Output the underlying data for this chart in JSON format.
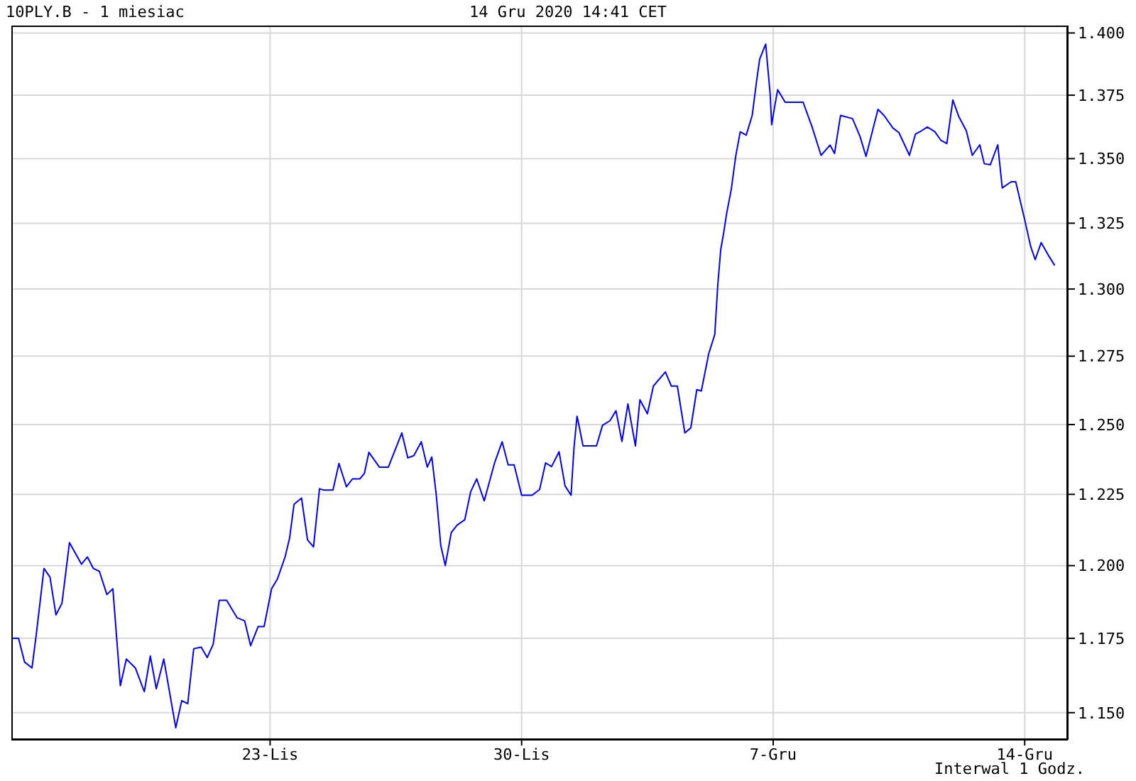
{
  "chart_data": {
    "type": "line",
    "title": "10PLY.B - 1 miesiac",
    "subtitle": "14 Gru 2020 14:41 CET",
    "annotations": [
      "Interwal 1 Godz."
    ],
    "x": [
      "2020-11-15T20:00",
      "2020-11-16T00:00",
      "2020-11-16T04:00",
      "2020-11-16T09:00",
      "2020-11-16T12:00",
      "2020-11-16T17:00",
      "2020-11-16T21:00",
      "2020-11-17T01:00",
      "2020-11-17T05:00",
      "2020-11-17T10:00",
      "2020-11-17T18:00",
      "2020-11-17T22:00",
      "2020-11-18T02:00",
      "2020-11-18T06:00",
      "2020-11-18T11:00",
      "2020-11-18T15:00",
      "2020-11-18T20:00",
      "2020-11-19T00:00",
      "2020-11-19T06:00",
      "2020-11-19T12:00",
      "2020-11-19T16:00",
      "2020-11-19T20:00",
      "2020-11-20T01:00",
      "2020-11-20T09:00",
      "2020-11-20T13:00",
      "2020-11-20T17:00",
      "2020-11-20T21:00",
      "2020-11-21T02:00",
      "2020-11-21T06:00",
      "2020-11-21T10:00",
      "2020-11-21T14:00",
      "2020-11-21T19:00",
      "2020-11-22T02:00",
      "2020-11-22T07:00",
      "2020-11-22T11:00",
      "2020-11-22T16:00",
      "2020-11-22T20:00",
      "2020-11-23T01:00",
      "2020-11-23T05:00",
      "2020-11-23T10:00",
      "2020-11-23T13:00",
      "2020-11-23T16:00",
      "2020-11-23T21:00",
      "2020-11-24T01:00",
      "2020-11-24T05:00",
      "2020-11-24T09:00",
      "2020-11-24T12:00",
      "2020-11-24T18:00",
      "2020-11-24T22:00",
      "2020-11-25T03:00",
      "2020-11-25T07:00",
      "2020-11-25T12:00",
      "2020-11-25T15:00",
      "2020-11-25T18:00",
      "2020-11-26T01:00",
      "2020-11-26T07:00",
      "2020-11-26T16:00",
      "2020-11-26T20:00",
      "2020-11-27T00:00",
      "2020-11-27T05:00",
      "2020-11-27T09:00",
      "2020-11-27T12:00",
      "2020-11-27T15:00",
      "2020-11-27T18:00",
      "2020-11-27T21:00",
      "2020-11-28T01:00",
      "2020-11-28T05:00",
      "2020-11-28T10:00",
      "2020-11-28T14:00",
      "2020-11-28T18:00",
      "2020-11-28T23:00",
      "2020-11-29T06:00",
      "2020-11-29T11:00",
      "2020-11-29T15:00",
      "2020-11-29T19:00",
      "2020-11-30T00:00",
      "2020-11-30T07:00",
      "2020-11-30T12:00",
      "2020-11-30T16:00",
      "2020-11-30T20:00",
      "2020-12-01T01:00",
      "2020-12-01T05:00",
      "2020-12-01T09:00",
      "2020-12-01T11:00",
      "2020-12-01T13:00",
      "2020-12-01T14:00",
      "2020-12-01T17:00",
      "2020-12-02T02:00",
      "2020-12-02T06:00",
      "2020-12-02T11:00",
      "2020-12-02T15:00",
      "2020-12-02T19:00",
      "2020-12-02T23:00",
      "2020-12-03T04:00",
      "2020-12-03T07:00",
      "2020-12-03T12:00",
      "2020-12-03T16:00",
      "2020-12-04T00:00",
      "2020-12-04T04:00",
      "2020-12-04T08:00",
      "2020-12-04T13:00",
      "2020-12-04T17:00",
      "2020-12-04T21:00",
      "2020-12-05T00:00",
      "2020-12-05T05:00",
      "2020-12-05T09:00",
      "2020-12-05T11:00",
      "2020-12-05T13:00",
      "2020-12-05T15:00",
      "2020-12-05T17:00",
      "2020-12-05T20:00",
      "2020-12-05T23:00",
      "2020-12-06T02:00",
      "2020-12-06T06:00",
      "2020-12-06T10:00",
      "2020-12-06T13:00",
      "2020-12-06T15:00",
      "2020-12-06T19:00",
      "2020-12-06T22:00",
      "2020-12-06T23:00",
      "2020-12-07T01:00",
      "2020-12-07T03:00",
      "2020-12-07T08:00",
      "2020-12-07T20:00",
      "2020-12-08T02:00",
      "2020-12-08T08:00",
      "2020-12-08T14:00",
      "2020-12-08T17:00",
      "2020-12-08T19:00",
      "2020-12-08T21:00",
      "2020-12-09T05:00",
      "2020-12-09T10:00",
      "2020-12-09T14:00",
      "2020-12-09T22:00",
      "2020-12-10T02:00",
      "2020-12-10T08:00",
      "2020-12-10T12:00",
      "2020-12-10T19:00",
      "2020-12-10T23:00",
      "2020-12-11T03:00",
      "2020-12-11T07:00",
      "2020-12-11T12:00",
      "2020-12-11T16:00",
      "2020-12-11T20:00",
      "2020-12-12T00:00",
      "2020-12-12T04:00",
      "2020-12-12T09:00",
      "2020-12-12T13:00",
      "2020-12-12T18:00",
      "2020-12-12T21:00",
      "2020-12-13T01:00",
      "2020-12-13T06:00",
      "2020-12-13T09:00",
      "2020-12-13T15:00",
      "2020-12-13T18:00",
      "2020-12-14T00:00",
      "2020-12-14T04:00",
      "2020-12-14T07:00",
      "2020-12-14T11:00",
      "2020-12-14T16:00",
      "2020-12-14T20:00"
    ],
    "values": [
      1.175,
      1.175,
      1.167,
      1.165,
      1.177,
      1.199,
      1.196,
      1.183,
      1.187,
      1.208,
      1.2005,
      1.203,
      1.199,
      1.198,
      1.19,
      1.192,
      1.159,
      1.168,
      1.165,
      1.157,
      1.169,
      1.158,
      1.168,
      1.145,
      1.154,
      1.153,
      1.1715,
      1.172,
      1.1685,
      1.173,
      1.188,
      1.188,
      1.182,
      1.181,
      1.1725,
      1.179,
      1.179,
      1.192,
      1.1955,
      1.203,
      1.2095,
      1.2215,
      1.2237,
      1.209,
      1.2065,
      1.227,
      1.2265,
      1.2265,
      1.236,
      1.2277,
      1.2305,
      1.2305,
      1.2325,
      1.24,
      1.2347,
      1.2347,
      1.247,
      1.238,
      1.2388,
      1.2438,
      1.2347,
      1.2383,
      1.2247,
      1.207,
      1.2,
      1.2115,
      1.2142,
      1.216,
      1.226,
      1.2305,
      1.2227,
      1.2363,
      1.2438,
      1.2355,
      1.2355,
      1.2247,
      1.2247,
      1.2267,
      1.2362,
      1.2349,
      1.2402,
      1.228,
      1.2247,
      1.2418,
      1.253,
      1.2505,
      1.2423,
      1.2423,
      1.2497,
      1.2514,
      1.255,
      1.2439,
      1.2575,
      1.2423,
      1.259,
      1.2539,
      1.264,
      1.2692,
      1.264,
      1.264,
      1.247,
      1.2488,
      1.2627,
      1.2622,
      1.276,
      1.283,
      1.3015,
      1.315,
      1.3215,
      1.329,
      1.338,
      1.351,
      1.3605,
      1.3592,
      1.367,
      1.381,
      1.3895,
      1.3955,
      1.3754,
      1.3633,
      1.3705,
      1.3772,
      1.3722,
      1.3722,
      1.3624,
      1.3513,
      1.3553,
      1.352,
      1.3596,
      1.367,
      1.3657,
      1.3587,
      1.3509,
      1.3694,
      1.367,
      1.362,
      1.3602,
      1.3513,
      1.3596,
      1.3609,
      1.3624,
      1.3605,
      1.3572,
      1.3559,
      1.3731,
      1.3665,
      1.3609,
      1.3513,
      1.3554,
      1.348,
      1.3476,
      1.3554,
      1.3386,
      1.341,
      1.341,
      1.3263,
      1.3161,
      1.3111,
      1.3176,
      1.3126,
      1.3089
    ],
    "color": "#0000ff",
    "log": "y",
    "grid": true,
    "legend": false,
    "marker": "none",
    "line_style": "solid",
    "xlim": [
      "2020-11-15T19:12",
      "2020-12-15T04:48"
    ],
    "xticks": [
      {
        "value": "2020-11-23",
        "label": "23-Lis"
      },
      {
        "value": "2020-11-30",
        "label": "30-Lis"
      },
      {
        "value": "2020-12-07",
        "label": "7-Gru"
      },
      {
        "value": "2020-12-14",
        "label": "14-Gru"
      }
    ],
    "ylim": [
      1.141,
      1.403
    ],
    "yticks": [
      {
        "value": 1.15,
        "label": "1.150"
      },
      {
        "value": 1.175,
        "label": "1.175"
      },
      {
        "value": 1.2,
        "label": "1.200"
      },
      {
        "value": 1.225,
        "label": "1.225"
      },
      {
        "value": 1.25,
        "label": "1.250"
      },
      {
        "value": 1.275,
        "label": "1.275"
      },
      {
        "value": 1.3,
        "label": "1.300"
      },
      {
        "value": 1.325,
        "label": "1.325"
      },
      {
        "value": 1.35,
        "label": "1.350"
      },
      {
        "value": 1.375,
        "label": "1.375"
      },
      {
        "value": 1.4,
        "label": "1.400"
      }
    ]
  }
}
